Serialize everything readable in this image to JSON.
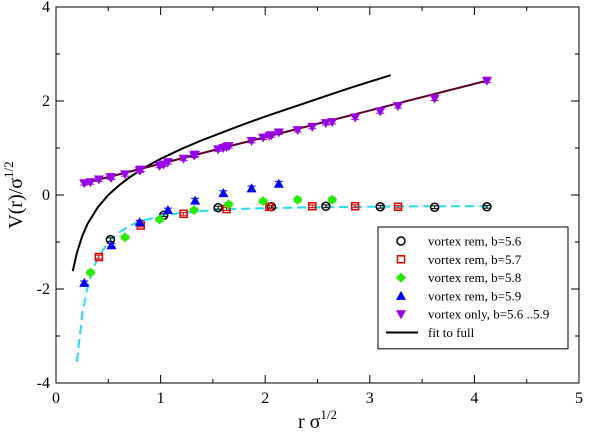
{
  "chart_data": {
    "type": "scatter",
    "xlabel": {
      "base": "r σ",
      "sup": "1/2"
    },
    "ylabel": {
      "base": "V(r)/σ",
      "sup": "1/2"
    },
    "xlim": [
      0,
      5
    ],
    "ylim": [
      -4,
      4
    ],
    "xticks": [
      0,
      1,
      2,
      3,
      4,
      5
    ],
    "yticks": [
      -4,
      -2,
      0,
      2,
      4
    ],
    "grid": false,
    "legend_position": "bottom-right",
    "series": [
      {
        "name": "vortex rem, b=5.6",
        "marker": "circle-open",
        "color": "#000000",
        "points": [
          [
            0.52,
            -0.95
          ],
          [
            1.03,
            -0.43
          ],
          [
            1.55,
            -0.27
          ],
          [
            2.06,
            -0.25
          ],
          [
            2.58,
            -0.24
          ],
          [
            3.1,
            -0.25
          ],
          [
            3.62,
            -0.26
          ],
          [
            4.12,
            -0.25
          ]
        ],
        "errors": [
          0.04,
          0.03,
          0.03,
          0.03,
          0.03,
          0.03,
          0.03,
          0.03
        ]
      },
      {
        "name": "vortex rem, b=5.7",
        "marker": "square-open",
        "color": "#e00000",
        "points": [
          [
            0.41,
            -1.32
          ],
          [
            0.81,
            -0.65
          ],
          [
            1.22,
            -0.4
          ],
          [
            1.63,
            -0.3
          ],
          [
            2.04,
            -0.25
          ],
          [
            2.45,
            -0.24
          ],
          [
            2.86,
            -0.24
          ],
          [
            3.27,
            -0.25
          ]
        ],
        "errors": [
          0.04,
          0.03,
          0.03,
          0.03,
          0.03,
          0.03,
          0.03,
          0.03
        ]
      },
      {
        "name": "vortex rem, b=5.8",
        "marker": "diamond-filled",
        "color": "#22ee00",
        "points": [
          [
            0.33,
            -1.65
          ],
          [
            0.66,
            -0.9
          ],
          [
            0.99,
            -0.52
          ],
          [
            1.32,
            -0.32
          ],
          [
            1.65,
            -0.2
          ],
          [
            1.98,
            -0.13
          ],
          [
            2.31,
            -0.1
          ],
          [
            2.64,
            -0.1
          ]
        ],
        "errors": [
          0.05,
          0.04,
          0.04,
          0.04,
          0.04,
          0.04,
          0.05,
          0.05
        ]
      },
      {
        "name": "vortex rem, b=5.9",
        "marker": "triangle-up-filled",
        "color": "#0000ff",
        "points": [
          [
            0.27,
            -1.87
          ],
          [
            0.53,
            -1.07
          ],
          [
            0.8,
            -0.58
          ],
          [
            1.07,
            -0.32
          ],
          [
            1.33,
            -0.12
          ],
          [
            1.6,
            0.04
          ],
          [
            1.87,
            0.14
          ],
          [
            2.13,
            0.24
          ]
        ],
        "errors": [
          0.04,
          0.04,
          0.04,
          0.04,
          0.05,
          0.05,
          0.05,
          0.05
        ]
      },
      {
        "name": "vortex only, b=5.6 ..5.9",
        "marker": "triangle-down-filled",
        "color": "#9a00ee",
        "points": [
          [
            0.27,
            0.25
          ],
          [
            0.33,
            0.27
          ],
          [
            0.41,
            0.33
          ],
          [
            0.53,
            0.37
          ],
          [
            0.52,
            0.38
          ],
          [
            0.66,
            0.44
          ],
          [
            0.8,
            0.52
          ],
          [
            0.81,
            0.54
          ],
          [
            0.99,
            0.62
          ],
          [
            1.03,
            0.65
          ],
          [
            1.07,
            0.7
          ],
          [
            1.22,
            0.77
          ],
          [
            1.32,
            0.84
          ],
          [
            1.33,
            0.86
          ],
          [
            1.55,
            0.97
          ],
          [
            1.6,
            1.0
          ],
          [
            1.63,
            1.02
          ],
          [
            1.65,
            1.04
          ],
          [
            1.87,
            1.15
          ],
          [
            1.98,
            1.22
          ],
          [
            2.04,
            1.26
          ],
          [
            2.06,
            1.27
          ],
          [
            2.13,
            1.33
          ],
          [
            2.31,
            1.38
          ],
          [
            2.45,
            1.45
          ],
          [
            2.58,
            1.53
          ],
          [
            2.64,
            1.55
          ],
          [
            2.86,
            1.65
          ],
          [
            3.1,
            1.78
          ],
          [
            3.27,
            1.89
          ],
          [
            3.62,
            2.05
          ],
          [
            4.12,
            2.43
          ]
        ],
        "errors": [
          0.04,
          0.04,
          0.04,
          0.04,
          0.04,
          0.04,
          0.04,
          0.04,
          0.04,
          0.04,
          0.04,
          0.04,
          0.04,
          0.04,
          0.04,
          0.04,
          0.04,
          0.04,
          0.04,
          0.04,
          0.04,
          0.04,
          0.04,
          0.04,
          0.04,
          0.04,
          0.04,
          0.04,
          0.04,
          0.04,
          0.04,
          0.04
        ]
      }
    ],
    "lines": [
      {
        "name": "fit to full",
        "style": "solid",
        "color": "#000000",
        "in_legend": true,
        "points": [
          [
            0.16,
            -1.62
          ],
          [
            0.2,
            -1.23
          ],
          [
            0.25,
            -0.88
          ],
          [
            0.3,
            -0.62
          ],
          [
            0.4,
            -0.26
          ],
          [
            0.5,
            0.0
          ],
          [
            0.6,
            0.2
          ],
          [
            0.7,
            0.37
          ],
          [
            0.8,
            0.52
          ],
          [
            0.9,
            0.65
          ],
          [
            1.0,
            0.77
          ],
          [
            1.2,
            0.98
          ],
          [
            1.4,
            1.17
          ],
          [
            1.6,
            1.34
          ],
          [
            1.8,
            1.51
          ],
          [
            2.0,
            1.67
          ],
          [
            2.2,
            1.82
          ],
          [
            2.4,
            1.97
          ],
          [
            2.6,
            2.12
          ],
          [
            2.8,
            2.27
          ],
          [
            3.0,
            2.41
          ],
          [
            3.2,
            2.55
          ]
        ]
      },
      {
        "name": "",
        "style": "solid",
        "color": "#5a0028",
        "in_legend": false,
        "points": [
          [
            0.25,
            0.24
          ],
          [
            4.15,
            2.45
          ]
        ]
      },
      {
        "name": "",
        "style": "dashed",
        "color": "#22ddee",
        "in_legend": false,
        "points": [
          [
            0.2,
            -3.55
          ],
          [
            0.25,
            -2.55
          ],
          [
            0.3,
            -1.98
          ],
          [
            0.35,
            -1.6
          ],
          [
            0.4,
            -1.34
          ],
          [
            0.5,
            -1.0
          ],
          [
            0.6,
            -0.8
          ],
          [
            0.7,
            -0.66
          ],
          [
            0.8,
            -0.56
          ],
          [
            1.0,
            -0.45
          ],
          [
            1.2,
            -0.38
          ],
          [
            1.4,
            -0.34
          ],
          [
            1.7,
            -0.3
          ],
          [
            2.0,
            -0.28
          ],
          [
            2.5,
            -0.26
          ],
          [
            3.0,
            -0.25
          ],
          [
            3.5,
            -0.24
          ],
          [
            4.15,
            -0.24
          ]
        ]
      }
    ]
  }
}
